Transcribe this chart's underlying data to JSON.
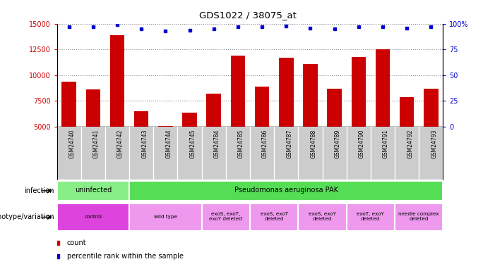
{
  "title": "GDS1022 / 38075_at",
  "samples": [
    "GSM24740",
    "GSM24741",
    "GSM24742",
    "GSM24743",
    "GSM24744",
    "GSM24745",
    "GSM24784",
    "GSM24785",
    "GSM24786",
    "GSM24787",
    "GSM24788",
    "GSM24789",
    "GSM24790",
    "GSM24791",
    "GSM24792",
    "GSM24793"
  ],
  "counts": [
    9400,
    8600,
    13900,
    6500,
    5100,
    6400,
    8200,
    11900,
    8900,
    11700,
    11100,
    8700,
    11800,
    12500,
    7900,
    8700
  ],
  "percentile": [
    97,
    97,
    99,
    95,
    93,
    94,
    95,
    97,
    97,
    98,
    96,
    95,
    97,
    97,
    96,
    97
  ],
  "ylim_left": [
    5000,
    15000
  ],
  "ylim_right": [
    0,
    100
  ],
  "yticks_left": [
    5000,
    7500,
    10000,
    12500,
    15000
  ],
  "yticks_right": [
    0,
    25,
    50,
    75,
    100
  ],
  "bar_color": "#cc0000",
  "dot_color": "#0000cc",
  "bar_bottom": 5000,
  "infection_row": [
    {
      "label": "uninfected",
      "span": [
        0,
        3
      ],
      "color": "#88ee88"
    },
    {
      "label": "Pseudomonas aeruginosa PAK",
      "span": [
        3,
        16
      ],
      "color": "#55dd55"
    }
  ],
  "genotype_row": [
    {
      "label": "control",
      "span": [
        0,
        3
      ],
      "color": "#dd44dd"
    },
    {
      "label": "wild type",
      "span": [
        3,
        6
      ],
      "color": "#ee99ee"
    },
    {
      "label": "exoS, exoT,\nexoY deleted",
      "span": [
        6,
        8
      ],
      "color": "#ee99ee"
    },
    {
      "label": "exoS, exoT\ndeleted",
      "span": [
        8,
        10
      ],
      "color": "#ee99ee"
    },
    {
      "label": "exoS, exoY\ndeleted",
      "span": [
        10,
        12
      ],
      "color": "#ee99ee"
    },
    {
      "label": "exoT, exoY\ndeleted",
      "span": [
        12,
        14
      ],
      "color": "#ee99ee"
    },
    {
      "label": "needle complex\ndeleted",
      "span": [
        14,
        16
      ],
      "color": "#ee99ee"
    }
  ],
  "infection_label": "infection",
  "genotype_label": "genotype/variation",
  "legend_count_color": "#cc0000",
  "legend_dot_color": "#0000cc",
  "legend_count_label": "count",
  "legend_dot_label": "percentile rank within the sample",
  "grid_color": "#888888",
  "background_color": "#ffffff",
  "plot_bg_color": "#ffffff",
  "xticklabel_bg": "#cccccc",
  "tick_color_left": "#cc0000",
  "tick_color_right": "#0000cc",
  "right_axis_label_100": "100%",
  "right_axis_labels": [
    "0",
    "25",
    "50",
    "75",
    "100%"
  ]
}
